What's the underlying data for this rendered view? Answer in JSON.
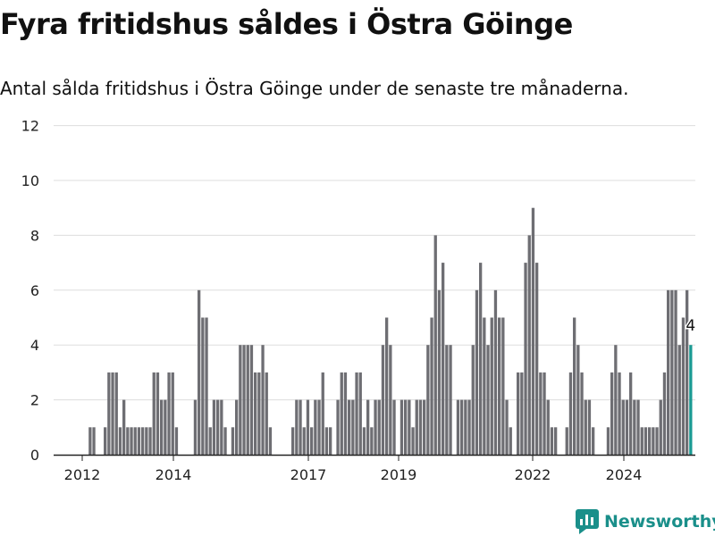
{
  "title": "Fyra fritidshus såldes i Östra Göinge",
  "subtitle": "Antal sålda fritidshus i Östra Göinge under de senaste tre månaderna.",
  "brand": "Newsworthy",
  "colors": {
    "bar": "#6e6e73",
    "highlight": "#1a9a93",
    "grid": "#dddddd",
    "brand": "#1a8f8a"
  },
  "chart_data": {
    "type": "bar",
    "title": "",
    "xlabel": "",
    "ylabel": "",
    "ylim": [
      0,
      12
    ],
    "yticks": [
      0,
      2,
      4,
      6,
      8,
      10,
      12
    ],
    "xticks": [
      "2012",
      "2014",
      "2017",
      "2019",
      "2022",
      "2024"
    ],
    "grid": true,
    "highlight_label": "4",
    "values": [
      0,
      0,
      0,
      0,
      0,
      0,
      0,
      1,
      1,
      0,
      0,
      1,
      3,
      3,
      3,
      1,
      2,
      1,
      1,
      1,
      1,
      1,
      1,
      1,
      3,
      3,
      2,
      2,
      3,
      3,
      1,
      0,
      0,
      0,
      0,
      2,
      6,
      5,
      5,
      1,
      2,
      2,
      2,
      1,
      0,
      1,
      2,
      4,
      4,
      4,
      4,
      3,
      3,
      4,
      3,
      1,
      0,
      0,
      0,
      0,
      0,
      1,
      2,
      2,
      1,
      2,
      1,
      2,
      2,
      3,
      1,
      1,
      0,
      2,
      3,
      3,
      2,
      2,
      3,
      3,
      1,
      2,
      1,
      2,
      2,
      4,
      5,
      4,
      2,
      0,
      2,
      2,
      2,
      1,
      2,
      2,
      2,
      4,
      5,
      8,
      6,
      7,
      4,
      4,
      0,
      2,
      2,
      2,
      2,
      4,
      6,
      7,
      5,
      4,
      5,
      6,
      5,
      5,
      2,
      1,
      0,
      3,
      3,
      7,
      8,
      9,
      7,
      3,
      3,
      2,
      1,
      1,
      0,
      0,
      1,
      3,
      5,
      4,
      3,
      2,
      2,
      1,
      0,
      0,
      0,
      1,
      3,
      4,
      3,
      2,
      2,
      3,
      2,
      2,
      1,
      1,
      1,
      1,
      1,
      2,
      3,
      6,
      6,
      6,
      4,
      5,
      6,
      4
    ],
    "highlight_index": 167
  }
}
